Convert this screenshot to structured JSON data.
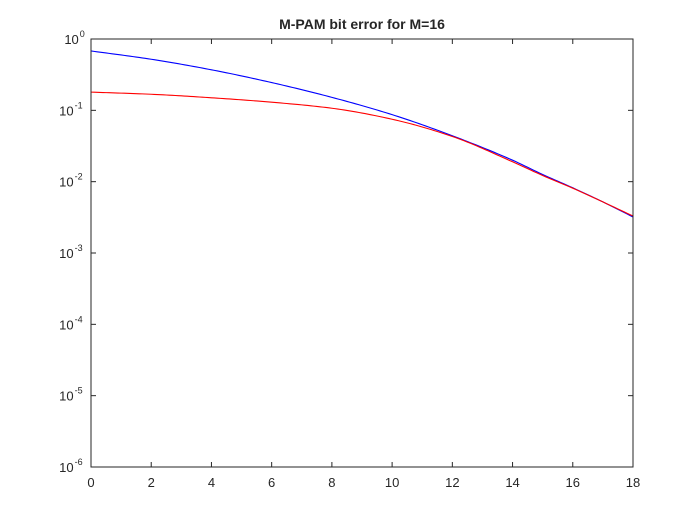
{
  "chart_data": {
    "type": "line",
    "title": "M-PAM bit error for M=16",
    "xlabel": "",
    "ylabel": "",
    "xlim": [
      0,
      18
    ],
    "ylim": [
      1e-06,
      1
    ],
    "yscale": "log",
    "grid": false,
    "legend": "none",
    "x_ticks": [
      "0",
      "2",
      "4",
      "6",
      "8",
      "10",
      "12",
      "14",
      "16",
      "18"
    ],
    "y_ticks": [
      {
        "base": "10",
        "exp": "0",
        "value": 1
      },
      {
        "base": "10",
        "exp": "-1",
        "value": 0.1
      },
      {
        "base": "10",
        "exp": "-2",
        "value": 0.01
      },
      {
        "base": "10",
        "exp": "-3",
        "value": 0.001
      },
      {
        "base": "10",
        "exp": "-4",
        "value": 0.0001
      },
      {
        "base": "10",
        "exp": "-5",
        "value": 1e-05
      },
      {
        "base": "10",
        "exp": "-6",
        "value": 1e-06
      }
    ],
    "x": [
      0,
      2,
      4,
      6,
      8,
      10,
      12,
      14,
      15,
      16,
      17,
      18
    ],
    "series": [
      {
        "color": "#0000ff",
        "values": [
          0.68,
          0.52,
          0.37,
          0.245,
          0.152,
          0.087,
          0.044,
          0.02,
          0.0126,
          0.0082,
          0.0052,
          0.0032
        ]
      },
      {
        "color": "#ff0000",
        "values": [
          0.18,
          0.168,
          0.15,
          0.13,
          0.107,
          0.075,
          0.043,
          0.019,
          0.0122,
          0.0081,
          0.0052,
          0.0033
        ]
      }
    ]
  }
}
